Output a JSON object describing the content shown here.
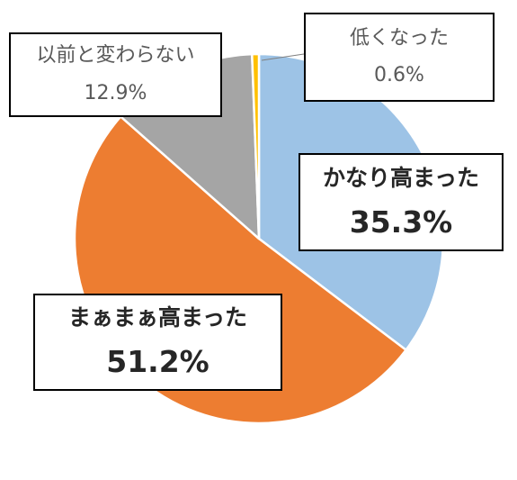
{
  "chart_data": {
    "type": "pie",
    "slices": [
      {
        "label": "かなり高まった",
        "value": 35.3,
        "value_label": "35.3%",
        "color": "#9DC3E6"
      },
      {
        "label": "まぁまぁ高まった",
        "value": 51.2,
        "value_label": "51.2%",
        "color": "#ED7D31"
      },
      {
        "label": "以前と変わらない",
        "value": 12.9,
        "value_label": "12.9%",
        "color": "#A5A5A5"
      },
      {
        "label": "低くなった",
        "value": 0.6,
        "value_label": "0.6%",
        "color": "#FFC000"
      }
    ]
  }
}
